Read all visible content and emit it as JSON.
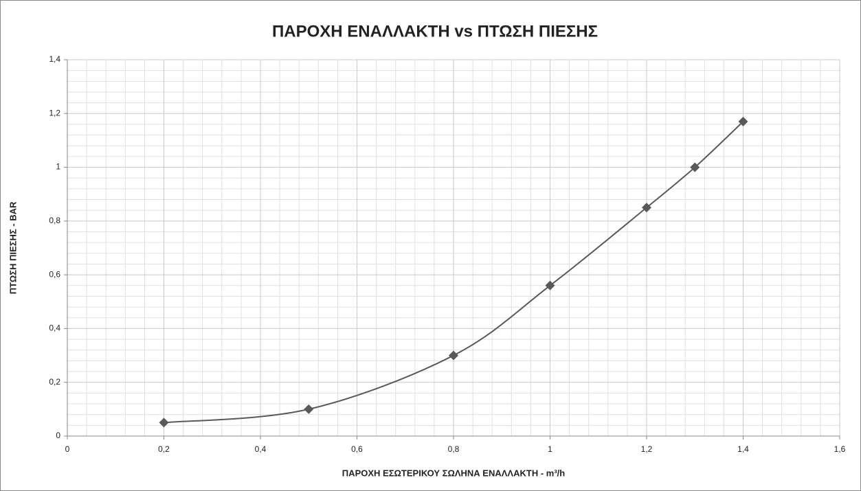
{
  "chart_data": {
    "type": "line",
    "title": "ΠΑΡΟΧΗ ΕΝΑΛΛΑΚΤΗ vs ΠΤΩΣΗ ΠΙΕΣΗΣ",
    "xlabel": "ΠΑΡΟΧΗ ΕΣΩΤΕΡΙΚΟΥ ΣΩΛΗΝΑ ΕΝΑΛΛΑΚΤΗ - m³/h",
    "ylabel": "ΠΤΩΣΗ ΠΙΕΣΗΣ - BAR",
    "x": [
      0.2,
      0.5,
      0.8,
      1.0,
      1.2,
      1.3,
      1.4
    ],
    "series": [
      {
        "name": "ΠΤΩΣΗ ΠΙΕΣΗΣ",
        "color": "#595959",
        "values": [
          0.05,
          0.1,
          0.3,
          0.56,
          0.85,
          1.0,
          1.17
        ]
      }
    ],
    "xlim": [
      0,
      1.6
    ],
    "xticks": [
      0,
      {
        "value": 0.2,
        "label": "0,2"
      },
      {
        "value": 0.4,
        "label": "0,4"
      },
      {
        "value": 0.6,
        "label": "0,6"
      },
      {
        "value": 0.8,
        "label": "0,8"
      },
      1,
      {
        "value": 1.2,
        "label": "1,2"
      },
      {
        "value": 1.4,
        "label": "1,4"
      },
      {
        "value": 1.6,
        "label": "1,6"
      }
    ],
    "ylim": [
      0,
      1.4
    ],
    "yticks": [
      0,
      {
        "value": 0.2,
        "label": "0,2"
      },
      {
        "value": 0.4,
        "label": "0,4"
      },
      {
        "value": 0.6,
        "label": "0,6"
      },
      {
        "value": 0.8,
        "label": "0,8"
      },
      1,
      {
        "value": 1.2,
        "label": "1,2"
      },
      {
        "value": 1.4,
        "label": "1,4"
      }
    ],
    "grid": true,
    "minor_grid": true,
    "smooth": true
  }
}
